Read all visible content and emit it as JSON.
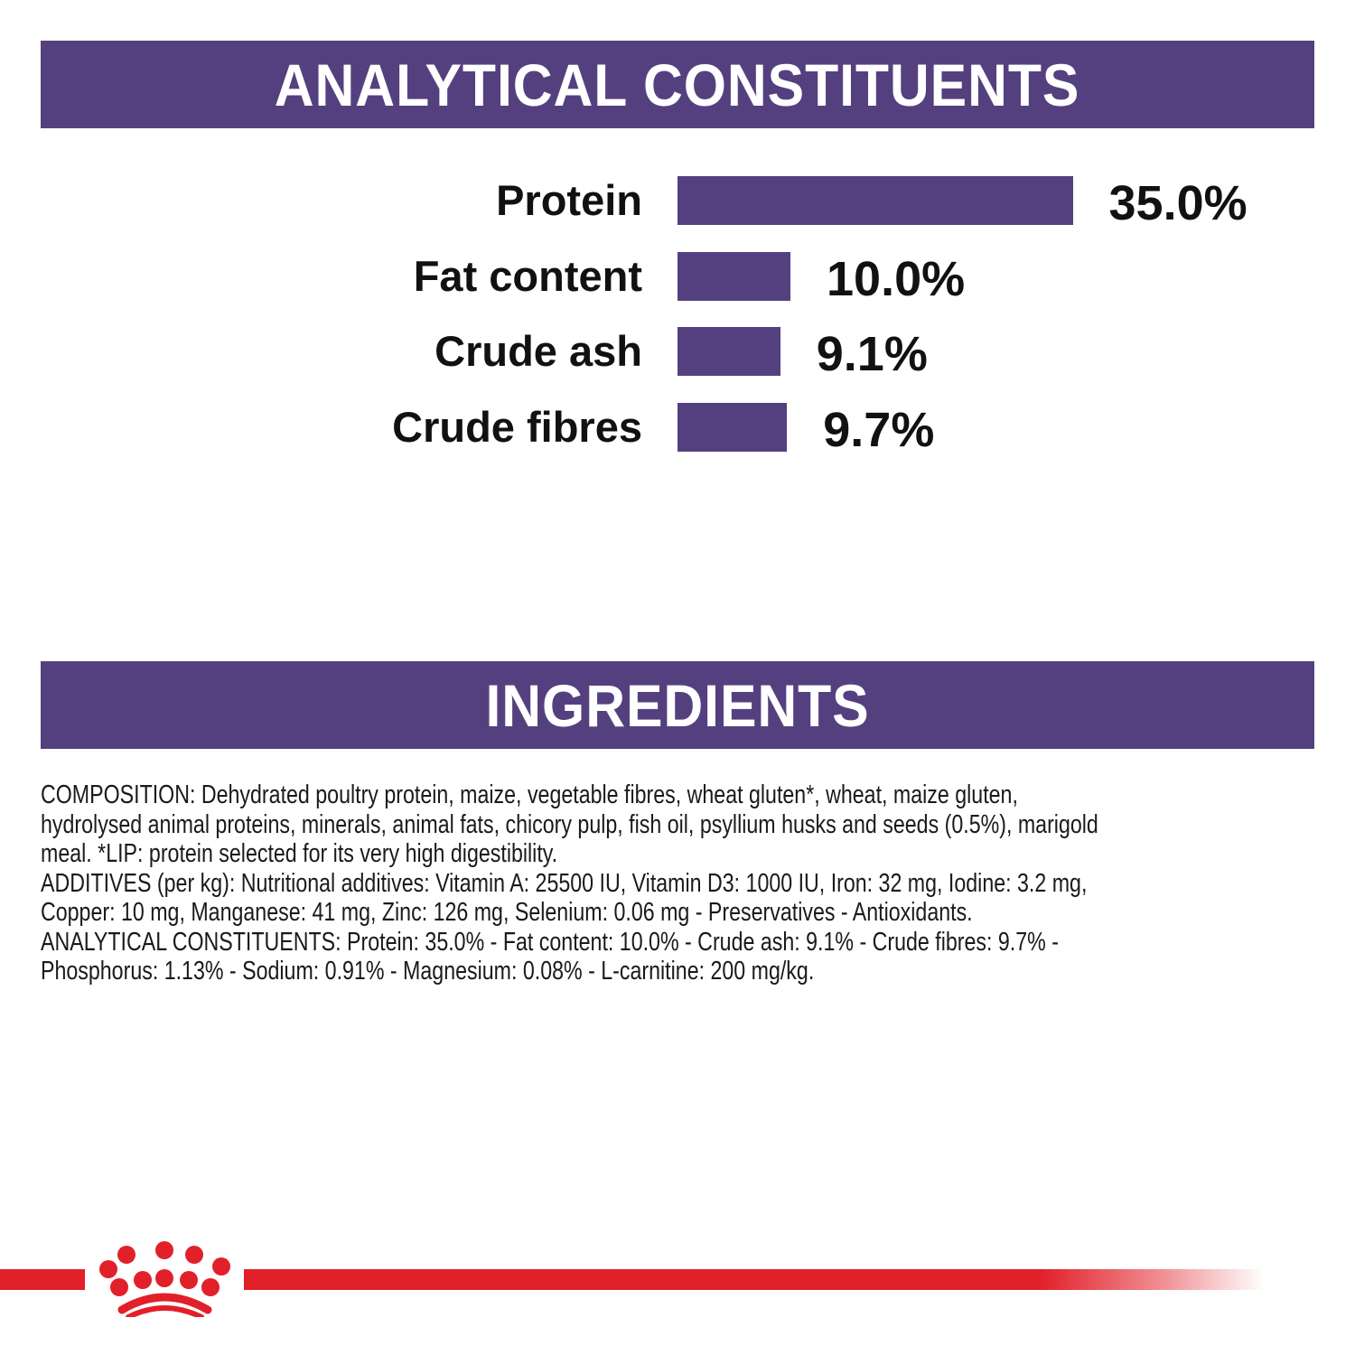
{
  "analytical": {
    "title": "ANALYTICAL CONSTITUENTS"
  },
  "chart_data": {
    "type": "bar",
    "orientation": "horizontal",
    "categories": [
      "Protein",
      "Fat content",
      "Crude ash",
      "Crude fibres"
    ],
    "values": [
      35.0,
      10.0,
      9.1,
      9.7
    ],
    "value_labels": [
      "35.0%",
      "10.0%",
      "9.1%",
      "9.7%"
    ],
    "unit": "%",
    "bar_color": "#55407f",
    "grid": false
  },
  "ingredients": {
    "title": "INGREDIENTS",
    "lines": [
      "COMPOSITION: Dehydrated poultry protein, maize, vegetable fibres, wheat gluten*, wheat, maize gluten,",
      "hydrolysed animal proteins, minerals, animal fats, chicory pulp, fish oil, psyllium husks and seeds (0.5%), marigold",
      "meal. *LIP: protein selected for its very high digestibility.",
      "ADDITIVES (per kg): Nutritional additives: Vitamin A: 25500 IU, Vitamin D3: 1000 IU, Iron: 32 mg, Iodine: 3.2 mg,",
      "Copper: 10 mg, Manganese: 41 mg, Zinc: 126 mg, Selenium: 0.06 mg - Preservatives - Antioxidants.",
      "ANALYTICAL CONSTITUENTS: Protein: 35.0% - Fat content: 10.0% - Crude ash: 9.1% - Crude fibres: 9.7% -",
      "Phosphorus: 1.13% - Sodium: 0.91% - Magnesium: 0.08% - L-carnitine: 200 mg/kg."
    ]
  },
  "colors": {
    "brand_purple": "#55407f",
    "brand_red": "#e2202a"
  },
  "logo": {
    "icon": "royal-canin-crown-icon"
  }
}
